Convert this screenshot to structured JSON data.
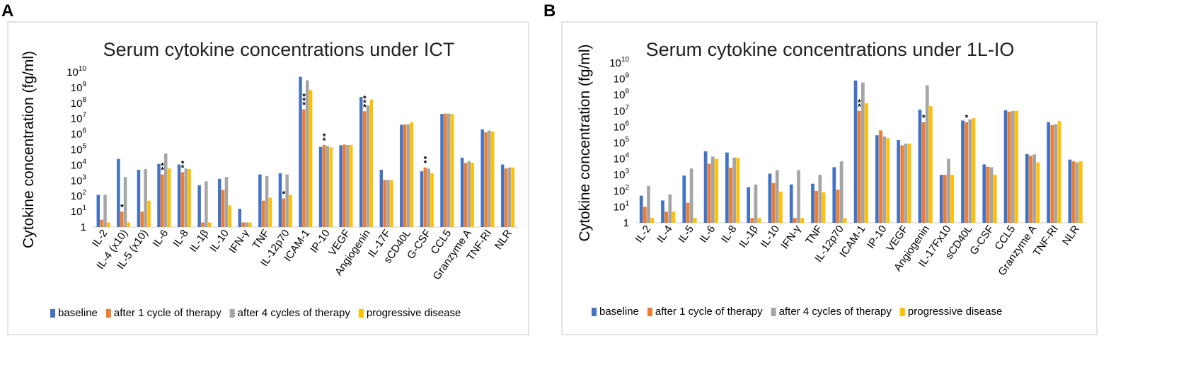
{
  "figure": {
    "panel_labels": [
      "A",
      "B"
    ]
  },
  "chart_data": [
    {
      "type": "bar",
      "yscale": "log",
      "title": "Serum cytokine concentrations under ICT",
      "xlabel": "",
      "ylabel": "Cytokine concentration (fg/ml)",
      "ylim": [
        1,
        10000000000
      ],
      "yticks": [
        "1",
        "10",
        "10",
        "10",
        "10",
        "10",
        "10",
        "10",
        "10",
        "10",
        "10"
      ],
      "ytick_exponents": [
        "",
        "1",
        "2",
        "3",
        "4",
        "5",
        "6",
        "7",
        "8",
        "9",
        "10"
      ],
      "legend_position": "bottom",
      "categories": [
        "IL-2",
        "IL-4 (x10)",
        "IL-5 (x10)",
        "IL-6",
        "IL-8",
        "IL-1β",
        "IL-10",
        "IFN-γ",
        "TNF",
        "IL-12p70",
        "ICAM-1",
        "IP-10",
        "VEGF",
        "Angiogenin",
        "IL-17F",
        "sCD40L",
        "G-CSF",
        "CCL5",
        "Granzyme A",
        "TNF-RI",
        "NLR"
      ],
      "series": [
        {
          "name": "baseline",
          "color": "#4472C4",
          "values": [
            120,
            25000,
            5000,
            12000,
            11000,
            500,
            1300,
            15,
            2500,
            3000,
            5000000000,
            150000,
            190000,
            250000000,
            5000,
            4000000,
            4000,
            20000000,
            30000,
            2000000,
            11000
          ]
        },
        {
          "name": "after 1 cycle of therapy",
          "color": "#ED7D31",
          "values": [
            3,
            10,
            10,
            2500,
            3500,
            2,
            250,
            2,
            50,
            70,
            40000000,
            200000,
            210000,
            30000000,
            1100,
            4200000,
            7000,
            21000000,
            14000,
            1300000,
            6000
          ]
        },
        {
          "name": "after 4 cycles of therapy",
          "color": "#A5A5A5",
          "values": [
            120,
            1700,
            5500,
            55000,
            6000,
            900,
            1700,
            2,
            2000,
            2500,
            3000000000,
            170000,
            200000,
            70000000,
            1100,
            4300000,
            6000,
            21000000,
            18000,
            1700000,
            7000
          ]
        },
        {
          "name": "progressive disease",
          "color": "#FFC000",
          "values": [
            2,
            2,
            50,
            6000,
            5500,
            2,
            25,
            2,
            80,
            120,
            700000000,
            140000,
            200000,
            170000000,
            1100,
            6000000,
            3000,
            20000000,
            14000,
            1500000,
            7000
          ]
        }
      ],
      "annotations": [
        {
          "category": "IL-4 (x10)",
          "text": "*"
        },
        {
          "category": "IL-6",
          "text": "**"
        },
        {
          "category": "IL-8",
          "text": "**"
        },
        {
          "category": "IL-12p70",
          "text": "*"
        },
        {
          "category": "ICAM-1",
          "text": "***"
        },
        {
          "category": "IP-10",
          "text": "**"
        },
        {
          "category": "Angiogenin",
          "text": "***"
        },
        {
          "category": "G-CSF",
          "text": "**"
        }
      ]
    },
    {
      "type": "bar",
      "yscale": "log",
      "title": "Serum cytokine concentrations under 1L-IO",
      "xlabel": "",
      "ylabel": "Cytokine concentration (fg/ml)",
      "ylim": [
        1,
        10000000000
      ],
      "yticks": [
        "1",
        "10",
        "10",
        "10",
        "10",
        "10",
        "10",
        "10",
        "10",
        "10",
        "10"
      ],
      "ytick_exponents": [
        "",
        "1",
        "2",
        "3",
        "4",
        "5",
        "6",
        "7",
        "8",
        "9",
        "10"
      ],
      "legend_position": "bottom",
      "categories": [
        "IL-2",
        "IL-4",
        "IL-5",
        "IL-6",
        "IL-8",
        "IL-1β",
        "IL-10",
        "IFN-γ",
        "TNF",
        "IL-12p70",
        "ICAM-1",
        "IP-10",
        "VEGF",
        "Angiogenin",
        "IL-17Fx10",
        "sCD40L",
        "G-CSF",
        "CCL5",
        "Granzyme A",
        "TNF-RI",
        "NLR"
      ],
      "series": [
        {
          "name": "baseline",
          "color": "#4472C4",
          "values": [
            50,
            25,
            900,
            30000,
            25000,
            170,
            1200,
            250,
            280,
            3000,
            800000000,
            300000,
            150000,
            12000000,
            1000,
            2500000,
            4500,
            11000000,
            20000,
            2000000,
            9000
          ]
        },
        {
          "name": "after 1 cycle of therapy",
          "color": "#ED7D31",
          "values": [
            10,
            5,
            18,
            5000,
            2800,
            2,
            300,
            2,
            100,
            120,
            10000000,
            600000,
            70000,
            2000000,
            1000,
            2000000,
            3200,
            9000000,
            16000,
            1300000,
            7000
          ]
        },
        {
          "name": "after 4 cycles of therapy",
          "color": "#A5A5A5",
          "values": [
            200,
            60,
            2500,
            14000,
            12000,
            250,
            2000,
            2000,
            1000,
            7000,
            600000000,
            250000,
            90000,
            400000000,
            10000,
            3000000,
            3000,
            10000000,
            19000,
            1500000,
            6000
          ]
        },
        {
          "name": "progressive disease",
          "color": "#FFC000",
          "values": [
            2,
            5,
            2,
            10000,
            12000,
            2,
            90,
            2,
            80,
            2,
            30000000,
            200000,
            90000,
            20000000,
            1000,
            3500000,
            1000,
            10000000,
            6000,
            2300000,
            7000
          ]
        }
      ],
      "annotations": [
        {
          "category": "ICAM-1",
          "text": "**"
        },
        {
          "category": "Angiogenin",
          "text": "*"
        },
        {
          "category": "sCD40L",
          "text": "*"
        }
      ]
    }
  ]
}
